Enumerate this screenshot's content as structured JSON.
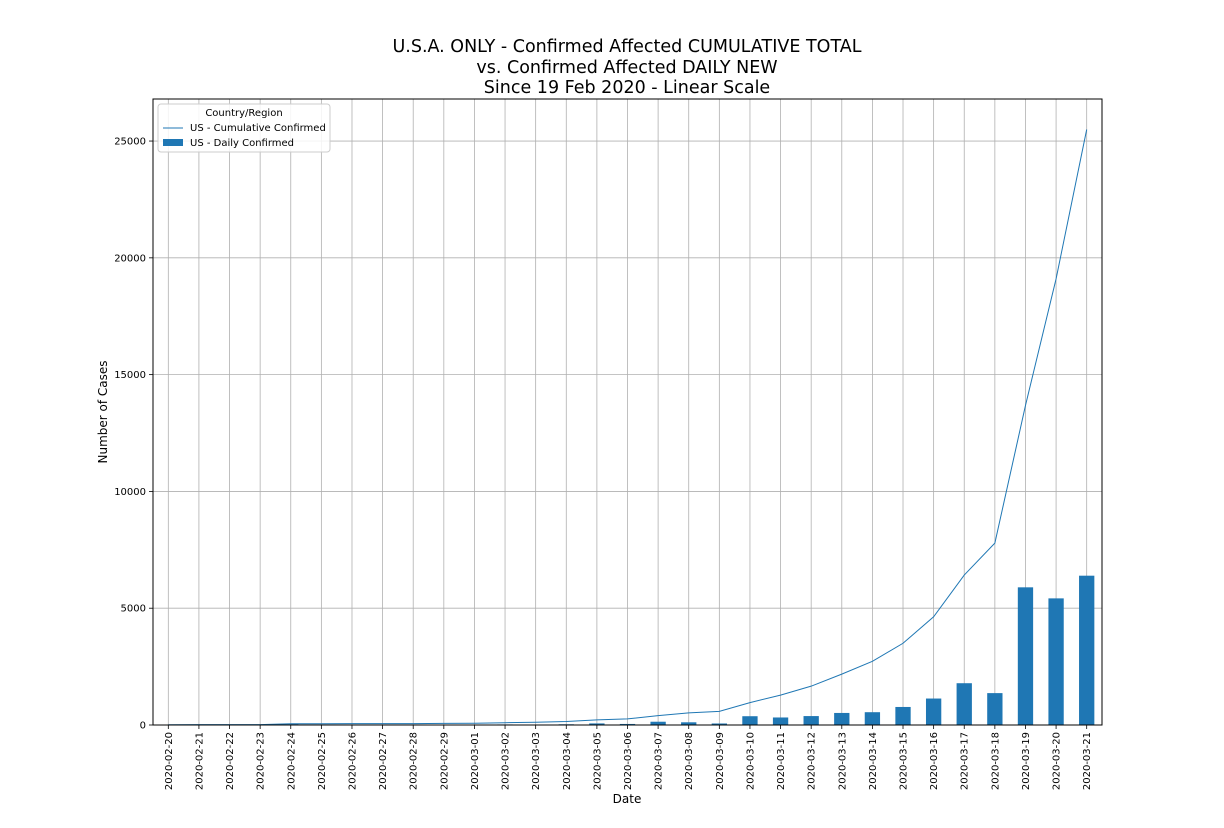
{
  "chart_data": {
    "type": "bar",
    "title": [
      "U.S.A. ONLY - Confirmed Affected CUMULATIVE TOTAL",
      "vs. Confirmed Affected DAILY NEW",
      "Since 19 Feb 2020 - Linear Scale"
    ],
    "xlabel": "Date",
    "ylabel": "Number of Cases",
    "ylim": [
      0,
      26800
    ],
    "yticks": [
      0,
      5000,
      10000,
      15000,
      20000,
      25000
    ],
    "grid": true,
    "legend": {
      "title": "Country/Region",
      "placement": "top-left",
      "entries": [
        "US - Cumulative Confirmed",
        "US - Daily Confirmed"
      ]
    },
    "categories": [
      "2020-02-20",
      "2020-02-21",
      "2020-02-22",
      "2020-02-23",
      "2020-02-24",
      "2020-02-25",
      "2020-02-26",
      "2020-02-27",
      "2020-02-28",
      "2020-02-29",
      "2020-03-01",
      "2020-03-02",
      "2020-03-03",
      "2020-03-04",
      "2020-03-05",
      "2020-03-06",
      "2020-03-07",
      "2020-03-08",
      "2020-03-09",
      "2020-03-10",
      "2020-03-11",
      "2020-03-12",
      "2020-03-13",
      "2020-03-14",
      "2020-03-15",
      "2020-03-16",
      "2020-03-17",
      "2020-03-18",
      "2020-03-19",
      "2020-03-20",
      "2020-03-21"
    ],
    "series": [
      {
        "name": "US - Cumulative Confirmed",
        "kind": "line",
        "color": "#1f77b4",
        "values": [
          13,
          15,
          15,
          15,
          51,
          51,
          57,
          58,
          60,
          68,
          74,
          98,
          118,
          149,
          217,
          262,
          402,
          518,
          583,
          959,
          1281,
          1663,
          2179,
          2727,
          3499,
          4632,
          6421,
          7786,
          13680,
          19101,
          25493
        ]
      },
      {
        "name": "US - Daily Confirmed",
        "kind": "bar",
        "color": "#1f77b4",
        "values": [
          0,
          2,
          0,
          0,
          36,
          0,
          6,
          1,
          2,
          8,
          6,
          24,
          20,
          31,
          68,
          45,
          140,
          116,
          65,
          376,
          322,
          382,
          516,
          548,
          772,
          1133,
          1789,
          1365,
          5894,
          5421,
          6392
        ]
      }
    ]
  }
}
